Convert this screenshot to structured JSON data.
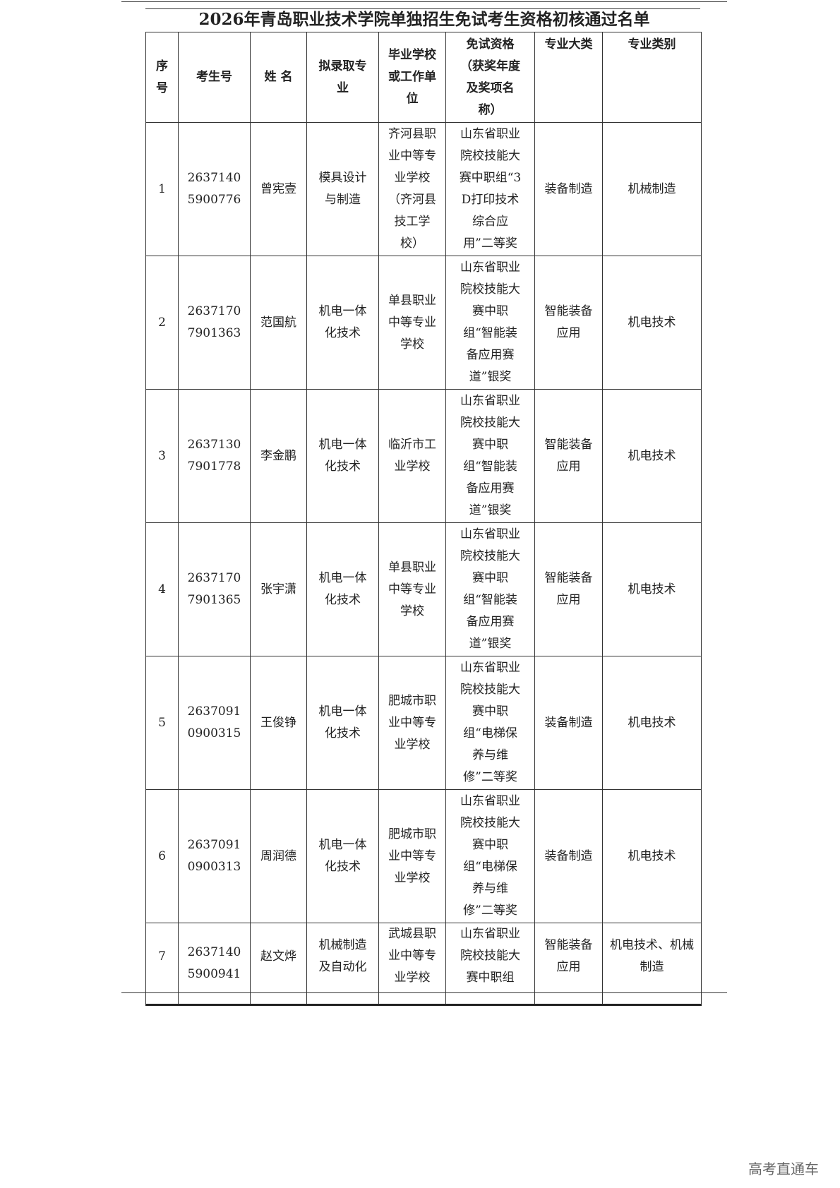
{
  "title": "2026年青岛职业技术学院单独招生免试考生资格初核通过名单",
  "headers": [
    "序号",
    "考生号",
    "姓 名",
    "拟录取专业",
    "毕业学校或工作单位",
    "免试资格（获奖年度及奖项名称）",
    "专业大类",
    "专业类别"
  ],
  "rows": [
    [
      "1",
      "26371405900776",
      "曾宪壹",
      "模具设计与制造",
      "齐河县职业中等专业学校（齐河县技工学校）",
      "山东省职业院校技能大赛中职组“3D打印技术综合应用”二等奖",
      "装备制造",
      "机械制造"
    ],
    [
      "2",
      "26371707901363",
      "范国航",
      "机电一体化技术",
      "单县职业中等专业学校",
      "山东省职业院校技能大赛中职组“智能装备应用赛道”银奖",
      "智能装备应用",
      "机电技术"
    ],
    [
      "3",
      "26371307901778",
      "李金鹏",
      "机电一体化技术",
      "临沂市工业学校",
      "山东省职业院校技能大赛中职组“智能装备应用赛道”银奖",
      "智能装备应用",
      "机电技术"
    ],
    [
      "4",
      "26371707901365",
      "张宇潇",
      "机电一体化技术",
      "单县职业中等专业学校",
      "山东省职业院校技能大赛中职组“智能装备应用赛道”银奖",
      "智能装备应用",
      "机电技术"
    ],
    [
      "5",
      "26370910900315",
      "王俊铮",
      "机电一体化技术",
      "肥城市职业中等专业学校",
      "山东省职业院校技能大赛中职组“电梯保养与维修”二等奖",
      "装备制造",
      "机电技术"
    ],
    [
      "6",
      "26370910900313",
      "周润德",
      "机电一体化技术",
      "肥城市职业中等专业学校",
      "山东省职业院校技能大赛中职组“电梯保养与维修”二等奖",
      "装备制造",
      "机电技术"
    ],
    [
      "7",
      "26371405900941",
      "赵文烨",
      "机械制造及自动化",
      "武城县职业中等专业学校",
      "山东省职业院校技能大赛中职组",
      "智能装备应用",
      "机电技术、机械制造"
    ]
  ],
  "watermark": "高考直通车"
}
